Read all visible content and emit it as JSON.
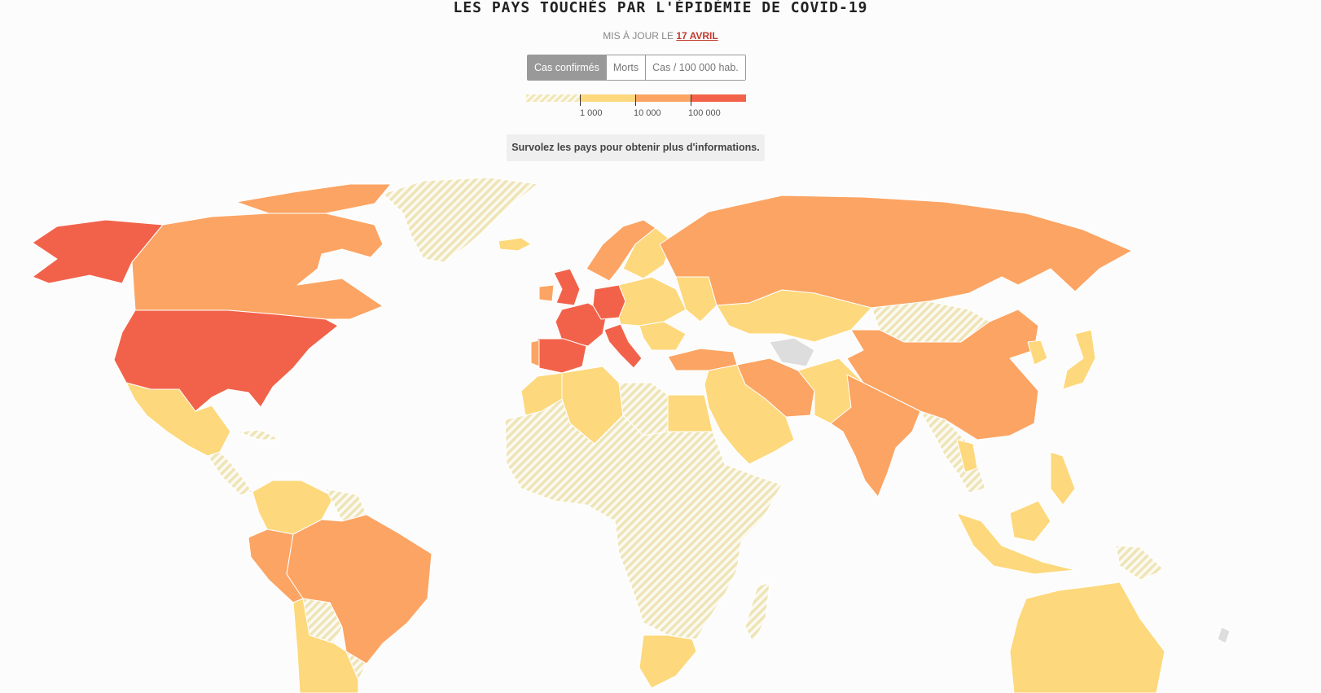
{
  "header": {
    "title": "LES PAYS TOUCHÉS PAR L'ÉPIDÉMIE DE COVID-19",
    "updated_prefix": "MIS À JOUR LE",
    "updated_date": "17 AVRIL"
  },
  "toggle": {
    "options": [
      "Cas confirmés",
      "Morts",
      "Cas / 100 000 hab."
    ],
    "selected": "Cas confirmés"
  },
  "legend": {
    "thresholds": [
      "1 000",
      "10 000",
      "100 000"
    ],
    "colors": {
      "no_data_stripe": "#f2e6b3",
      "tier1": "#fdd87c",
      "tier2": "#fca463",
      "tier3": "#f2624a",
      "unknown": "#dddddd"
    }
  },
  "hint": "Survolez les pays pour obtenir plus d'informations."
}
